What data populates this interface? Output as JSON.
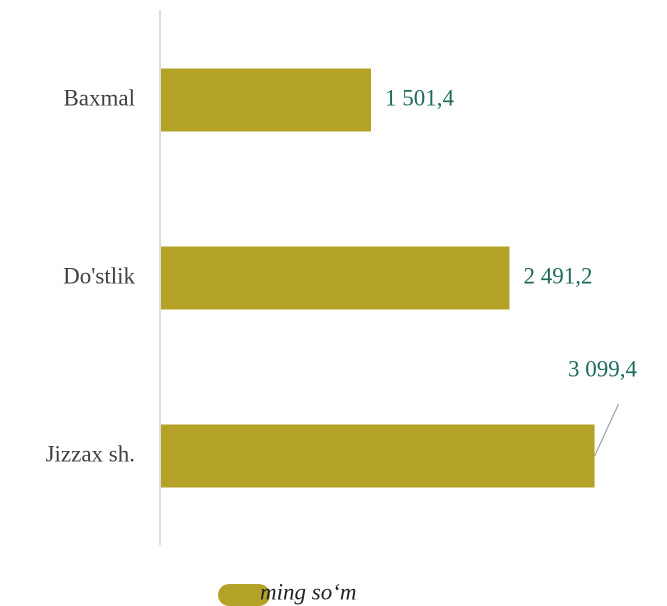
{
  "chart_data": {
    "type": "bar",
    "orientation": "horizontal",
    "categories": [
      "Baxmal",
      "Do'stlik",
      "Jizzax sh."
    ],
    "series": [
      {
        "name": "ming so‘m",
        "color": "#b4a227",
        "values": [
          1501.4,
          2491.2,
          3099.4
        ],
        "value_labels": [
          "1 501,4",
          "2 491,2",
          "3 099,4"
        ]
      }
    ],
    "label_color": "#1d6b5b"
  }
}
